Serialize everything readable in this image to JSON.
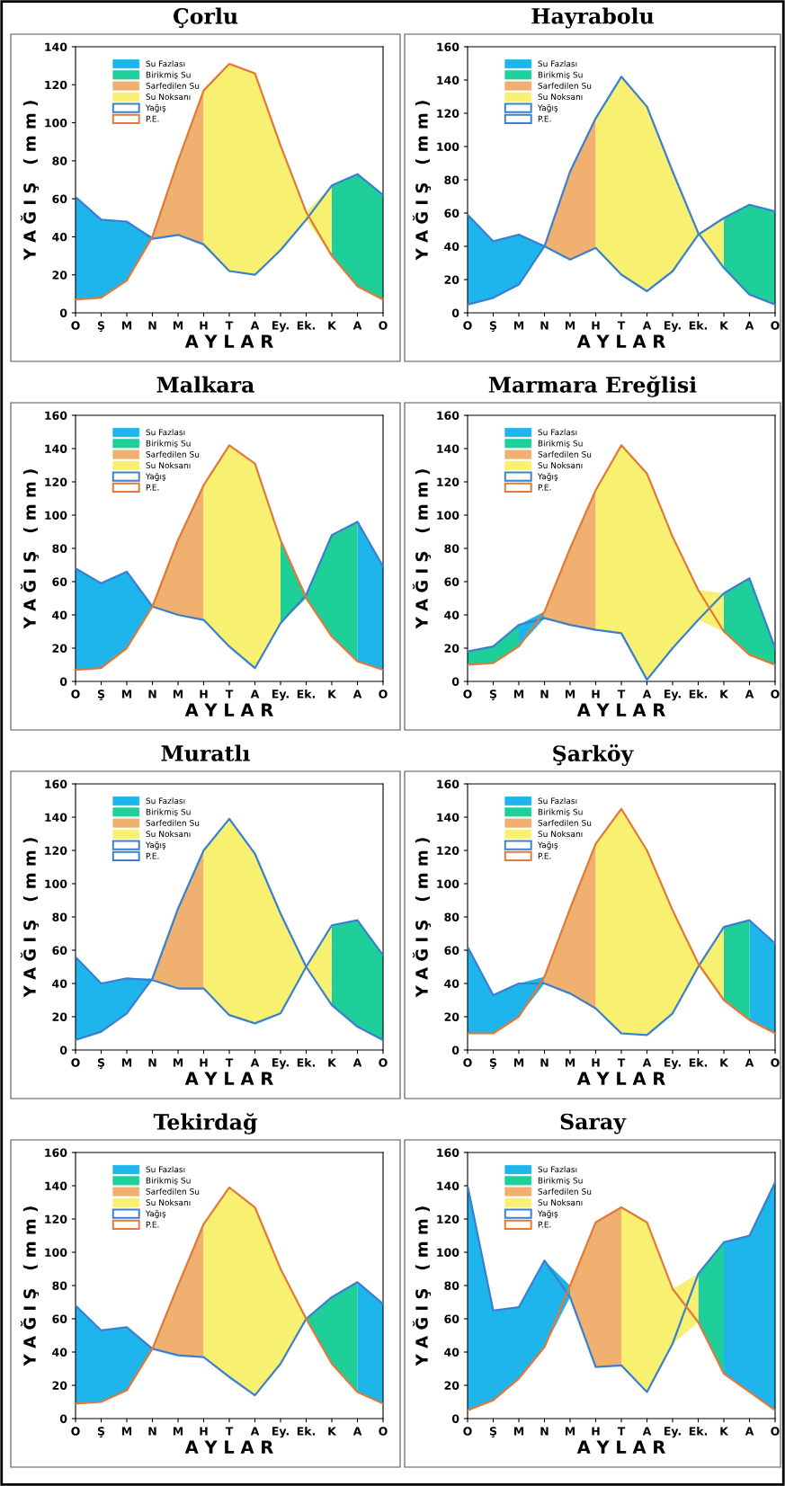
{
  "chart_data": [
    {
      "type": "line",
      "title": "Çorlu",
      "xlabel": "A Y L A R",
      "ylabel": "Y A Ğ I Ş   ( m m )",
      "legend": "top left",
      "categories": [
        "O",
        "Ş",
        "M",
        "N",
        "M",
        "H",
        "T",
        "A",
        "Ey.",
        "Ek.",
        "K",
        "A",
        "O"
      ],
      "ylim": [
        0,
        140
      ],
      "yticks": [
        0,
        20,
        40,
        60,
        80,
        100,
        120,
        140
      ],
      "series": [
        {
          "name": "Su Fazlası",
          "type": "area",
          "color": "#1eb4ec",
          "values": [
            61,
            49,
            48,
            40,
            null,
            null,
            null,
            null,
            null,
            null,
            null,
            null,
            null
          ]
        },
        {
          "name": "Birikmiş Su",
          "type": "area",
          "color": "#1ecf9a",
          "values": [
            null,
            null,
            null,
            null,
            null,
            null,
            null,
            null,
            null,
            null,
            67,
            73,
            62
          ]
        },
        {
          "name": "Sarfedilen Su",
          "type": "area",
          "color": "#f0b070",
          "values": [
            null,
            null,
            null,
            40,
            80,
            117,
            null,
            null,
            null,
            null,
            null,
            null,
            null
          ]
        },
        {
          "name": "Su Noksanı",
          "type": "area",
          "color": "#f8f070",
          "values": [
            null,
            null,
            null,
            null,
            null,
            117,
            131,
            126,
            88,
            53,
            67,
            null,
            null
          ]
        },
        {
          "name": "Yağış",
          "color": "#3a7fd0",
          "values": [
            61,
            49,
            48,
            39,
            41,
            36,
            22,
            20,
            33,
            49,
            67,
            73,
            62
          ]
        },
        {
          "name": "P.E.",
          "color": "#e07a3a",
          "values": [
            7,
            8,
            17,
            40,
            80,
            117,
            131,
            126,
            88,
            53,
            30,
            14,
            7
          ]
        }
      ]
    },
    {
      "type": "line",
      "title": "Hayrabolu",
      "xlabel": "A Y L A R",
      "ylabel": "Y A Ğ I Ş   ( m m )",
      "legend": "top left",
      "categories": [
        "O",
        "Ş",
        "M",
        "N",
        "M",
        "H",
        "T",
        "A",
        "Ey.",
        "Ek.",
        "K",
        "A",
        "O"
      ],
      "ylim": [
        0,
        160
      ],
      "yticks": [
        0,
        20,
        40,
        60,
        80,
        100,
        120,
        140,
        160
      ],
      "series": [
        {
          "name": "Su Fazlası",
          "type": "area",
          "color": "#1eb4ec",
          "values": [
            59,
            43,
            47,
            40,
            null,
            null,
            null,
            null,
            null,
            null,
            null,
            null,
            null
          ]
        },
        {
          "name": "Birikmiş Su",
          "type": "area",
          "color": "#1ecf9a",
          "values": [
            null,
            null,
            null,
            null,
            null,
            null,
            null,
            null,
            null,
            null,
            57,
            65,
            61
          ]
        },
        {
          "name": "Sarfedilen Su",
          "type": "area",
          "color": "#f0b070",
          "values": [
            null,
            null,
            null,
            40,
            85,
            117,
            null,
            null,
            null,
            null,
            null,
            null,
            null
          ]
        },
        {
          "name": "Su Noksanı",
          "type": "area",
          "color": "#f8f070",
          "values": [
            null,
            null,
            null,
            null,
            null,
            117,
            142,
            124,
            85,
            48,
            57,
            null,
            null
          ]
        },
        {
          "name": "Yağış",
          "color": "#3a7fd0",
          "values": [
            59,
            43,
            47,
            40,
            32,
            39,
            23,
            13,
            25,
            47,
            57,
            65,
            61
          ]
        },
        {
          "name": "P.E.",
          "color": "#3a7fd0",
          "values": [
            5,
            9,
            17,
            40,
            85,
            117,
            142,
            124,
            85,
            48,
            27,
            11,
            5
          ]
        }
      ]
    },
    {
      "type": "line",
      "title": "Malkara",
      "xlabel": "A Y L A R",
      "ylabel": "Y A Ğ I Ş   ( m m )",
      "legend": "top left",
      "categories": [
        "O",
        "Ş",
        "M",
        "N",
        "M",
        "H",
        "T",
        "A",
        "Ey.",
        "Ek.",
        "K",
        "A",
        "O"
      ],
      "ylim": [
        0,
        160
      ],
      "yticks": [
        0,
        20,
        40,
        60,
        80,
        100,
        120,
        140,
        160
      ],
      "series": [
        {
          "name": "Su Fazlası",
          "type": "area",
          "color": "#1eb4ec",
          "values": [
            68,
            59,
            66,
            45,
            null,
            null,
            null,
            null,
            null,
            null,
            null,
            96,
            69
          ]
        },
        {
          "name": "Birikmiş Su",
          "type": "area",
          "color": "#1ecf9a",
          "values": [
            null,
            null,
            null,
            null,
            null,
            null,
            null,
            null,
            85,
            52,
            88,
            96,
            null
          ]
        },
        {
          "name": "Sarfedilen Su",
          "type": "area",
          "color": "#f0b070",
          "values": [
            null,
            null,
            null,
            45,
            85,
            118,
            null,
            null,
            null,
            null,
            null,
            null,
            null
          ]
        },
        {
          "name": "Su Noksanı",
          "type": "area",
          "color": "#f8f070",
          "values": [
            null,
            null,
            null,
            null,
            null,
            118,
            142,
            131,
            85,
            null,
            null,
            null,
            null
          ]
        },
        {
          "name": "Yağış",
          "color": "#3a7fd0",
          "values": [
            68,
            59,
            66,
            45,
            40,
            37,
            21,
            8,
            35,
            52,
            88,
            96,
            69
          ]
        },
        {
          "name": "P.E.",
          "color": "#e07a3a",
          "values": [
            7,
            8,
            20,
            45,
            85,
            118,
            142,
            131,
            85,
            50,
            27,
            12,
            7
          ]
        }
      ]
    },
    {
      "type": "line",
      "title": "Marmara Ereğlisi",
      "xlabel": "A Y L A R",
      "ylabel": "Y A Ğ I Ş   ( m m )",
      "legend": "top left",
      "categories": [
        "O",
        "Ş",
        "M",
        "N",
        "M",
        "H",
        "T",
        "A",
        "Ey.",
        "Ek.",
        "K",
        "A",
        "O"
      ],
      "ylim": [
        0,
        160
      ],
      "yticks": [
        0,
        20,
        40,
        60,
        80,
        100,
        120,
        140,
        160
      ],
      "series": [
        {
          "name": "Su Fazlası",
          "type": "area",
          "color": "#1eb4ec",
          "values": [
            null,
            null,
            34,
            42,
            null,
            null,
            null,
            null,
            null,
            null,
            null,
            null,
            null
          ]
        },
        {
          "name": "Birikmiş Su",
          "type": "area",
          "color": "#1ecf9a",
          "values": [
            18,
            21,
            34,
            null,
            null,
            null,
            null,
            null,
            null,
            null,
            53,
            62,
            20
          ]
        },
        {
          "name": "Sarfedilen Su",
          "type": "area",
          "color": "#f0b070",
          "values": [
            null,
            null,
            null,
            42,
            80,
            115,
            null,
            null,
            null,
            null,
            null,
            null,
            null
          ]
        },
        {
          "name": "Su Noksanı",
          "type": "area",
          "color": "#f8f070",
          "values": [
            null,
            null,
            null,
            null,
            null,
            115,
            142,
            125,
            87,
            55,
            53,
            null,
            null
          ]
        },
        {
          "name": "Yağış",
          "color": "#3a7fd0",
          "values": [
            18,
            21,
            34,
            38,
            34,
            31,
            29,
            1,
            20,
            37,
            53,
            62,
            20
          ]
        },
        {
          "name": "P.E.",
          "color": "#e07a3a",
          "values": [
            10,
            11,
            21,
            42,
            80,
            115,
            142,
            125,
            87,
            55,
            30,
            16,
            10
          ]
        }
      ]
    },
    {
      "type": "line",
      "title": "Muratlı",
      "xlabel": "A Y L A R",
      "ylabel": "Y A Ğ I Ş   ( m m )",
      "legend": "top left",
      "categories": [
        "O",
        "Ş",
        "M",
        "N",
        "M",
        "H",
        "T",
        "A",
        "Ey.",
        "Ek.",
        "K",
        "A",
        "O"
      ],
      "ylim": [
        0,
        160
      ],
      "yticks": [
        0,
        20,
        40,
        60,
        80,
        100,
        120,
        140,
        160
      ],
      "series": [
        {
          "name": "Su Fazlası",
          "type": "area",
          "color": "#1eb4ec",
          "values": [
            56,
            40,
            43,
            43,
            null,
            null,
            null,
            null,
            null,
            null,
            null,
            null,
            null
          ]
        },
        {
          "name": "Birikmiş Su",
          "type": "area",
          "color": "#1ecf9a",
          "values": [
            null,
            null,
            null,
            null,
            null,
            null,
            null,
            null,
            null,
            null,
            75,
            78,
            57
          ]
        },
        {
          "name": "Sarfedilen Su",
          "type": "area",
          "color": "#f0b070",
          "values": [
            null,
            null,
            null,
            43,
            85,
            120,
            null,
            null,
            null,
            null,
            null,
            null,
            null
          ]
        },
        {
          "name": "Su Noksanı",
          "type": "area",
          "color": "#f8f070",
          "values": [
            null,
            null,
            null,
            null,
            null,
            120,
            139,
            118,
            82,
            50,
            75,
            null,
            null
          ]
        },
        {
          "name": "Yağış",
          "color": "#3a7fd0",
          "values": [
            56,
            40,
            43,
            42,
            37,
            37,
            21,
            16,
            22,
            50,
            75,
            78,
            57
          ]
        },
        {
          "name": "P.E.",
          "color": "#3a7fd0",
          "values": [
            6,
            11,
            22,
            43,
            85,
            120,
            139,
            118,
            82,
            50,
            27,
            14,
            6
          ]
        }
      ]
    },
    {
      "type": "line",
      "title": "Şarköy",
      "xlabel": "A Y L A R",
      "ylabel": "Y A Ğ I Ş   ( m m )",
      "legend": "top left",
      "categories": [
        "O",
        "Ş",
        "M",
        "N",
        "M",
        "H",
        "T",
        "A",
        "Ey.",
        "Ek.",
        "K",
        "A",
        "O"
      ],
      "ylim": [
        0,
        160
      ],
      "yticks": [
        0,
        20,
        40,
        60,
        80,
        100,
        120,
        140,
        160
      ],
      "series": [
        {
          "name": "Su Fazlası",
          "type": "area",
          "color": "#1eb4ec",
          "values": [
            62,
            33,
            40,
            44,
            null,
            null,
            null,
            null,
            null,
            null,
            null,
            78,
            64
          ]
        },
        {
          "name": "Birikmiş Su",
          "type": "area",
          "color": "#1ecf9a",
          "values": [
            null,
            null,
            null,
            null,
            null,
            null,
            null,
            null,
            null,
            null,
            74,
            78,
            null
          ]
        },
        {
          "name": "Sarfedilen Su",
          "type": "area",
          "color": "#f0b070",
          "values": [
            null,
            null,
            null,
            44,
            85,
            124,
            null,
            null,
            null,
            null,
            null,
            null,
            null
          ]
        },
        {
          "name": "Su Noksanı",
          "type": "area",
          "color": "#f8f070",
          "values": [
            null,
            null,
            null,
            null,
            null,
            124,
            145,
            120,
            84,
            52,
            74,
            null,
            null
          ]
        },
        {
          "name": "Yağış",
          "color": "#3a7fd0",
          "values": [
            62,
            33,
            40,
            40,
            34,
            25,
            10,
            9,
            22,
            50,
            74,
            78,
            64
          ]
        },
        {
          "name": "P.E.",
          "color": "#e07a3a",
          "values": [
            10,
            10,
            20,
            44,
            85,
            124,
            145,
            120,
            84,
            52,
            30,
            18,
            10
          ]
        }
      ]
    },
    {
      "type": "line",
      "title": "Tekirdağ",
      "xlabel": "A Y L A R",
      "ylabel": "Y A Ğ I Ş   ( m m )",
      "legend": "top left",
      "categories": [
        "O",
        "Ş",
        "M",
        "N",
        "M",
        "H",
        "T",
        "A",
        "Ey.",
        "Ek.",
        "K",
        "A",
        "O"
      ],
      "ylim": [
        0,
        160
      ],
      "yticks": [
        0,
        20,
        40,
        60,
        80,
        100,
        120,
        140,
        160
      ],
      "series": [
        {
          "name": "Su Fazlası",
          "type": "area",
          "color": "#1eb4ec",
          "values": [
            68,
            53,
            55,
            42,
            null,
            null,
            null,
            null,
            null,
            null,
            null,
            82,
            69
          ]
        },
        {
          "name": "Birikmiş Su",
          "type": "area",
          "color": "#1ecf9a",
          "values": [
            null,
            null,
            null,
            null,
            null,
            null,
            null,
            null,
            null,
            60,
            73,
            82,
            null
          ]
        },
        {
          "name": "Sarfedilen Su",
          "type": "area",
          "color": "#f0b070",
          "values": [
            null,
            null,
            null,
            42,
            80,
            117,
            null,
            null,
            null,
            null,
            null,
            null,
            null
          ]
        },
        {
          "name": "Su Noksanı",
          "type": "area",
          "color": "#f8f070",
          "values": [
            null,
            null,
            null,
            null,
            null,
            117,
            139,
            127,
            90,
            60,
            null,
            null,
            null
          ]
        },
        {
          "name": "Yağış",
          "color": "#3a7fd0",
          "values": [
            68,
            53,
            55,
            42,
            38,
            37,
            25,
            14,
            33,
            60,
            73,
            82,
            69
          ]
        },
        {
          "name": "P.E.",
          "color": "#e07a3a",
          "values": [
            9,
            10,
            17,
            42,
            80,
            117,
            139,
            127,
            90,
            60,
            33,
            16,
            9
          ]
        }
      ]
    },
    {
      "type": "line",
      "title": "Saray",
      "xlabel": "A Y L A R",
      "ylabel": "Y A Ğ I Ş   ( m m )",
      "legend": "top left",
      "categories": [
        "O",
        "Ş",
        "M",
        "N",
        "M",
        "H",
        "T",
        "A",
        "Ey.",
        "Ek.",
        "K",
        "A",
        "O"
      ],
      "ylim": [
        0,
        160
      ],
      "yticks": [
        0,
        20,
        40,
        60,
        80,
        100,
        120,
        140,
        160
      ],
      "series": [
        {
          "name": "Su Fazlası",
          "type": "area",
          "color": "#1eb4ec",
          "values": [
            140,
            65,
            67,
            95,
            80,
            null,
            null,
            null,
            null,
            null,
            106,
            110,
            142
          ]
        },
        {
          "name": "Birikmiş Su",
          "type": "area",
          "color": "#1ecf9a",
          "values": [
            null,
            null,
            null,
            null,
            null,
            null,
            null,
            null,
            null,
            87,
            106,
            null,
            null
          ]
        },
        {
          "name": "Sarfedilen Su",
          "type": "area",
          "color": "#f0b070",
          "values": [
            null,
            null,
            null,
            null,
            80,
            118,
            127,
            null,
            null,
            null,
            null,
            null,
            null
          ]
        },
        {
          "name": "Su Noksanı",
          "type": "area",
          "color": "#f8f070",
          "values": [
            null,
            null,
            null,
            null,
            null,
            null,
            127,
            118,
            78,
            87,
            null,
            null,
            null
          ]
        },
        {
          "name": "Yağış",
          "color": "#3a7fd0",
          "values": [
            140,
            65,
            67,
            95,
            73,
            31,
            32,
            16,
            45,
            87,
            106,
            110,
            142
          ]
        },
        {
          "name": "P.E.",
          "color": "#e07a3a",
          "values": [
            5,
            11,
            24,
            43,
            80,
            118,
            127,
            118,
            78,
            58,
            27,
            16,
            5
          ]
        }
      ]
    }
  ]
}
